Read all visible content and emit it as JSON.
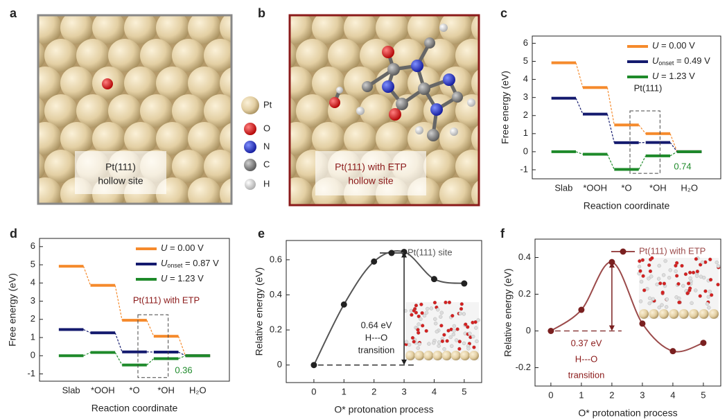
{
  "panel_labels": [
    "a",
    "b",
    "c",
    "d",
    "e",
    "f"
  ],
  "images": [
    {
      "caption": [
        "Pt(111)",
        "hollow site"
      ]
    },
    {
      "caption": [
        "Pt(111) with ETP",
        "hollow site"
      ]
    }
  ],
  "atom_legend": [
    "Pt",
    "O",
    "N",
    "C",
    "H"
  ],
  "chart_data": [
    {
      "type": "energy_diagram",
      "y_label": "Free energy (eV)",
      "x_label": "Reaction coordinate",
      "categories": [
        "Slab",
        "*OOH",
        "*O",
        "*OH",
        "H₂O"
      ],
      "series": [
        {
          "name": "U = 0.00 V",
          "color": "#f58a2c",
          "values": [
            4.92,
            3.55,
            1.48,
            1.0,
            0
          ]
        },
        {
          "name": "Uonset = 0.49 V",
          "color": "#141a6e",
          "values": [
            2.96,
            2.08,
            0.5,
            0.51,
            0
          ]
        },
        {
          "name": "U = 1.23 V",
          "color": "#1e8a2a",
          "values": [
            0,
            -0.14,
            -0.98,
            -0.23,
            0
          ]
        }
      ],
      "ylim": [
        -1.5,
        6.4
      ],
      "yticks": [
        -1,
        0,
        1,
        2,
        3,
        4,
        5,
        6
      ],
      "legend": "upper right",
      "annotations": [
        {
          "text": "Pt(111)",
          "color": "#222"
        },
        {
          "text": "0.74",
          "color": "#1e8a2a"
        }
      ]
    },
    {
      "type": "energy_diagram",
      "y_label": "Free energy (eV)",
      "x_label": "Reaction coordinate",
      "categories": [
        "Slab",
        "*OOH",
        "*O",
        "*OH",
        "H₂O"
      ],
      "series": [
        {
          "name": "U = 0.00 V",
          "color": "#f58a2c",
          "values": [
            4.92,
            3.87,
            1.95,
            1.07,
            0
          ]
        },
        {
          "name": "Uonset = 0.87 V",
          "color": "#141a6e",
          "values": [
            1.44,
            1.26,
            0.21,
            0.2,
            0
          ]
        },
        {
          "name": "U = 1.23 V",
          "color": "#1e8a2a",
          "values": [
            0,
            0.18,
            -0.51,
            -0.16,
            0
          ]
        }
      ],
      "ylim": [
        -1.4,
        6.45
      ],
      "yticks": [
        -1,
        0,
        1,
        2,
        3,
        4,
        5,
        6
      ],
      "legend": "upper right",
      "annotations": [
        {
          "text": "Pt(111) with ETP",
          "color": "#8b1a1a"
        },
        {
          "text": "0.36",
          "color": "#1e8a2a"
        }
      ]
    },
    {
      "type": "line",
      "y_label": "Relative energy (eV)",
      "x_label": "O* protonation process",
      "x": [
        0,
        1,
        2,
        3,
        4,
        5
      ],
      "series": [
        {
          "name": "Pt(111) site",
          "color": "#555555",
          "values": [
            0,
            0.345,
            0.59,
            0.645,
            0.49,
            0.465
          ]
        }
      ],
      "xlim": [
        -0.92,
        5.58
      ],
      "xticks": [
        0,
        1,
        2,
        3,
        4,
        5
      ],
      "ylim": [
        -0.1,
        0.71
      ],
      "yticks": [
        0,
        0.2,
        0.4,
        0.6
      ],
      "legend": "upper right",
      "annotations": [
        {
          "text": "0.64 eV",
          "color": "#222"
        },
        {
          "text": "H---O",
          "color": "#222"
        },
        {
          "text": "transition",
          "color": "#222"
        }
      ]
    },
    {
      "type": "line",
      "y_label": "Relative energy (eV)",
      "x_label": "O* protonation process",
      "x": [
        0,
        1,
        2,
        3,
        4,
        5
      ],
      "series": [
        {
          "name": "Pt(111) with ETP",
          "color": "#9b4a4a",
          "values": [
            0,
            0.115,
            0.375,
            0.04,
            -0.11,
            -0.065
          ]
        }
      ],
      "xlim": [
        -0.52,
        5.57
      ],
      "xticks": [
        0,
        1,
        2,
        3,
        4,
        5
      ],
      "ylim": [
        -0.3,
        0.5
      ],
      "yticks": [
        -0.2,
        0,
        0.2,
        0.4
      ],
      "legend": "upper right",
      "annotations": [
        {
          "text": "0.37 eV",
          "color": "#8b1a1a"
        },
        {
          "text": "H---O",
          "color": "#8b1a1a"
        },
        {
          "text": "transition",
          "color": "#8b1a1a"
        }
      ]
    }
  ]
}
